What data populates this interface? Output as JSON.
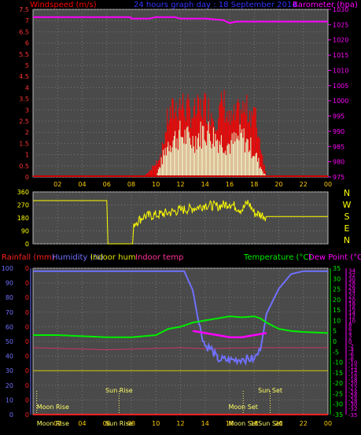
{
  "chart_data": [
    {
      "type": "line",
      "title": "24 hours graph day : 18 September 2014",
      "ylabel_left": "Windspeed (m/s)",
      "ylabel_right": "Barometer (hpa)",
      "x_ticks": [
        "02",
        "04",
        "06",
        "08",
        "10",
        "12",
        "14",
        "16",
        "18",
        "20",
        "22",
        "00"
      ],
      "y_left_ticks": [
        "0",
        "0.5",
        "1",
        "1.5",
        "2",
        "2.5",
        "3",
        "3.5",
        "4",
        "4.5",
        "5",
        "5.5",
        "6",
        "6.5",
        "7",
        "7.5"
      ],
      "y_right_ticks": [
        "975",
        "980",
        "985",
        "990",
        "995",
        "1000",
        "1005",
        "1010",
        "1015",
        "1020",
        "1025",
        "1030"
      ],
      "ylim_left": [
        0,
        7.5
      ],
      "ylim_right": [
        975,
        1030
      ],
      "xlim": [
        0,
        24
      ],
      "grid": true,
      "series": [
        {
          "name": "Barometer",
          "axis": "right",
          "color": "#ff00ff",
          "x": [
            0,
            7.9,
            8,
            9.5,
            10,
            11.5,
            12,
            13.5,
            14,
            15.5,
            16,
            16.5,
            17,
            24
          ],
          "y": [
            1027.5,
            1027.5,
            1027,
            1027,
            1027.5,
            1027.5,
            1027,
            1027,
            1027,
            1026.5,
            1025.5,
            1026,
            1026,
            1026
          ]
        },
        {
          "name": "Gust",
          "axis": "left",
          "color": "#ff0000",
          "x": [
            8,
            9,
            10,
            10.5,
            11,
            12,
            13,
            14,
            15,
            15.5,
            16,
            17,
            18,
            18.5,
            19,
            24
          ],
          "y": [
            0,
            0,
            0.6,
            1.2,
            2.7,
            3.3,
            2.8,
            3.2,
            2.6,
            3.4,
            2.4,
            3.0,
            2.9,
            1.5,
            0,
            0
          ]
        },
        {
          "name": "Wind",
          "axis": "left",
          "color": "#ffffcc",
          "x": [
            8,
            10,
            10.5,
            11,
            12,
            13,
            14,
            15,
            16,
            17,
            18,
            18.5,
            19,
            24
          ],
          "y": [
            0,
            0,
            0.8,
            1.6,
            2.0,
            1.7,
            2.2,
            1.8,
            1.5,
            1.9,
            1.2,
            0.5,
            0,
            0
          ]
        }
      ]
    },
    {
      "type": "line",
      "title": "",
      "y_left_ticks": [
        "0",
        "90",
        "180",
        "270",
        "360"
      ],
      "y_right_ticks": [
        "N",
        "W",
        "S",
        "E",
        "N"
      ],
      "ylim": [
        0,
        360
      ],
      "xlim": [
        0,
        24
      ],
      "grid": true,
      "series": [
        {
          "name": "Wind direction",
          "color": "#ffff00",
          "x": [
            0,
            0.3,
            6,
            6.1,
            8.1,
            8.2,
            9,
            10,
            11,
            12,
            13,
            14,
            15,
            16,
            17,
            17.5,
            18,
            19,
            24
          ],
          "y": [
            300,
            300,
            300,
            0,
            0,
            140,
            190,
            200,
            215,
            235,
            245,
            270,
            260,
            280,
            235,
            290,
            215,
            190,
            190
          ]
        }
      ]
    },
    {
      "type": "line",
      "title": "",
      "legend": [
        "Rainfall (mm)",
        "Humidity (%)",
        "Indoor hum",
        "Indoor temp",
        "Temperature (°C)",
        "Dew Point (°C)"
      ],
      "y_left_ticks": [
        "0",
        "10",
        "20",
        "30",
        "40",
        "50",
        "60",
        "70",
        "80",
        "90",
        "100"
      ],
      "y_right_ticks": [
        "-35",
        "-30",
        "-25",
        "-20",
        "-15",
        "-10",
        "-5",
        "0",
        "5",
        "10",
        "15",
        "20",
        "25",
        "30",
        "35"
      ],
      "y_far_right_ticks": [
        "-35",
        "-32",
        "-30",
        "-28",
        "-26",
        "-24",
        "-22",
        "-20",
        "-18",
        "-16",
        "-14",
        "-12",
        "-10",
        "-8",
        "-6",
        "-4",
        "-2",
        "0",
        "2",
        "4",
        "6",
        "8",
        "10",
        "12",
        "14",
        "16",
        "18",
        "20",
        "22",
        "24",
        "26",
        "28",
        "30",
        "32",
        "34"
      ],
      "ylim_left": [
        0,
        100
      ],
      "ylim_right": [
        -35,
        35
      ],
      "xlim": [
        0,
        24
      ],
      "annotations": [
        "Moon Rise",
        "Sun Rise",
        "Moon Set",
        "Sun Set",
        "Moon Rise",
        "Sun Rise",
        "Moon Set",
        "Sun Set"
      ],
      "series": [
        {
          "name": "Humidity",
          "axis": "left",
          "color": "#7070ff",
          "x": [
            0,
            12.3,
            13,
            13.5,
            14,
            14.5,
            15,
            16,
            17,
            18,
            18.5,
            19,
            20,
            21,
            22,
            24
          ],
          "y": [
            98,
            98,
            85,
            62,
            47,
            45,
            38,
            37,
            38,
            38,
            44,
            69,
            86,
            96,
            98,
            98
          ]
        },
        {
          "name": "Temperature",
          "axis": "right",
          "color": "#00ee00",
          "x": [
            0,
            2,
            4,
            6,
            8,
            10,
            11,
            12,
            13,
            14,
            15,
            16,
            17,
            18,
            18.5,
            19,
            20,
            21,
            22,
            24
          ],
          "y": [
            3,
            3,
            2.5,
            2,
            2,
            3,
            6,
            7,
            9,
            10,
            11,
            12,
            11.5,
            12,
            11,
            9,
            6,
            5,
            4.5,
            4
          ]
        },
        {
          "name": "Dew Point",
          "axis": "right",
          "color": "#ff00ff",
          "x": [
            13,
            14,
            15,
            16,
            17,
            18,
            18.5,
            19
          ],
          "y": [
            5,
            4,
            3,
            2,
            2,
            3,
            3.5,
            4
          ]
        },
        {
          "name": "Indoor hum",
          "axis": "left",
          "color": "#cccc00",
          "x": [
            0,
            24
          ],
          "y": [
            30,
            30
          ]
        },
        {
          "name": "Indoor temp",
          "axis": "right",
          "color": "#cc3366",
          "x": [
            0,
            6,
            12,
            14,
            18,
            24
          ],
          "y": [
            -3,
            -4,
            -3,
            -3.5,
            -3,
            -3
          ]
        },
        {
          "name": "Rainfall",
          "axis": "left",
          "color": "#ff2020",
          "x": [
            0,
            24
          ],
          "y": [
            0,
            0
          ]
        }
      ]
    }
  ],
  "labels": {
    "p1_left": "Windspeed (m/s)",
    "p1_title": "24 hours graph day : 18 September 2014",
    "p1_right": "Barometer (hpa)",
    "p2_dir_letters": [
      "N",
      "W",
      "S",
      "E",
      "N"
    ],
    "p3_rain": "Rainfall (mm)",
    "p3_hum": "Humidity (%)",
    "p3_inhum": "Indoor hum",
    "p3_intemp": "Indoor temp",
    "p3_temp": "Temperature (°C)",
    "p3_dew": "Dew Point (°C)",
    "moon_rise_1": "Moon Rise",
    "sun_rise_1": "Sun Rise",
    "moon_set_1": "Moon Set",
    "sun_set_1": "Sun Set",
    "moon_rise_2": "Moon Rise",
    "sun_rise_2": "Sun Rise",
    "moon_set_2": "Moon Set",
    "sun_set_2": "Sun Set"
  },
  "colors": {
    "grid": "#777777",
    "panel": "#4a4a4a",
    "wind_label": "#ff0000",
    "title": "#3333ff",
    "baro": "#ff00ff",
    "dir_axis": "#ffff00",
    "humid_axis": "#7070ff",
    "temp_axis": "#00ee00",
    "dew_axis": "#ff00ff",
    "sun_events": "#ffff66"
  }
}
